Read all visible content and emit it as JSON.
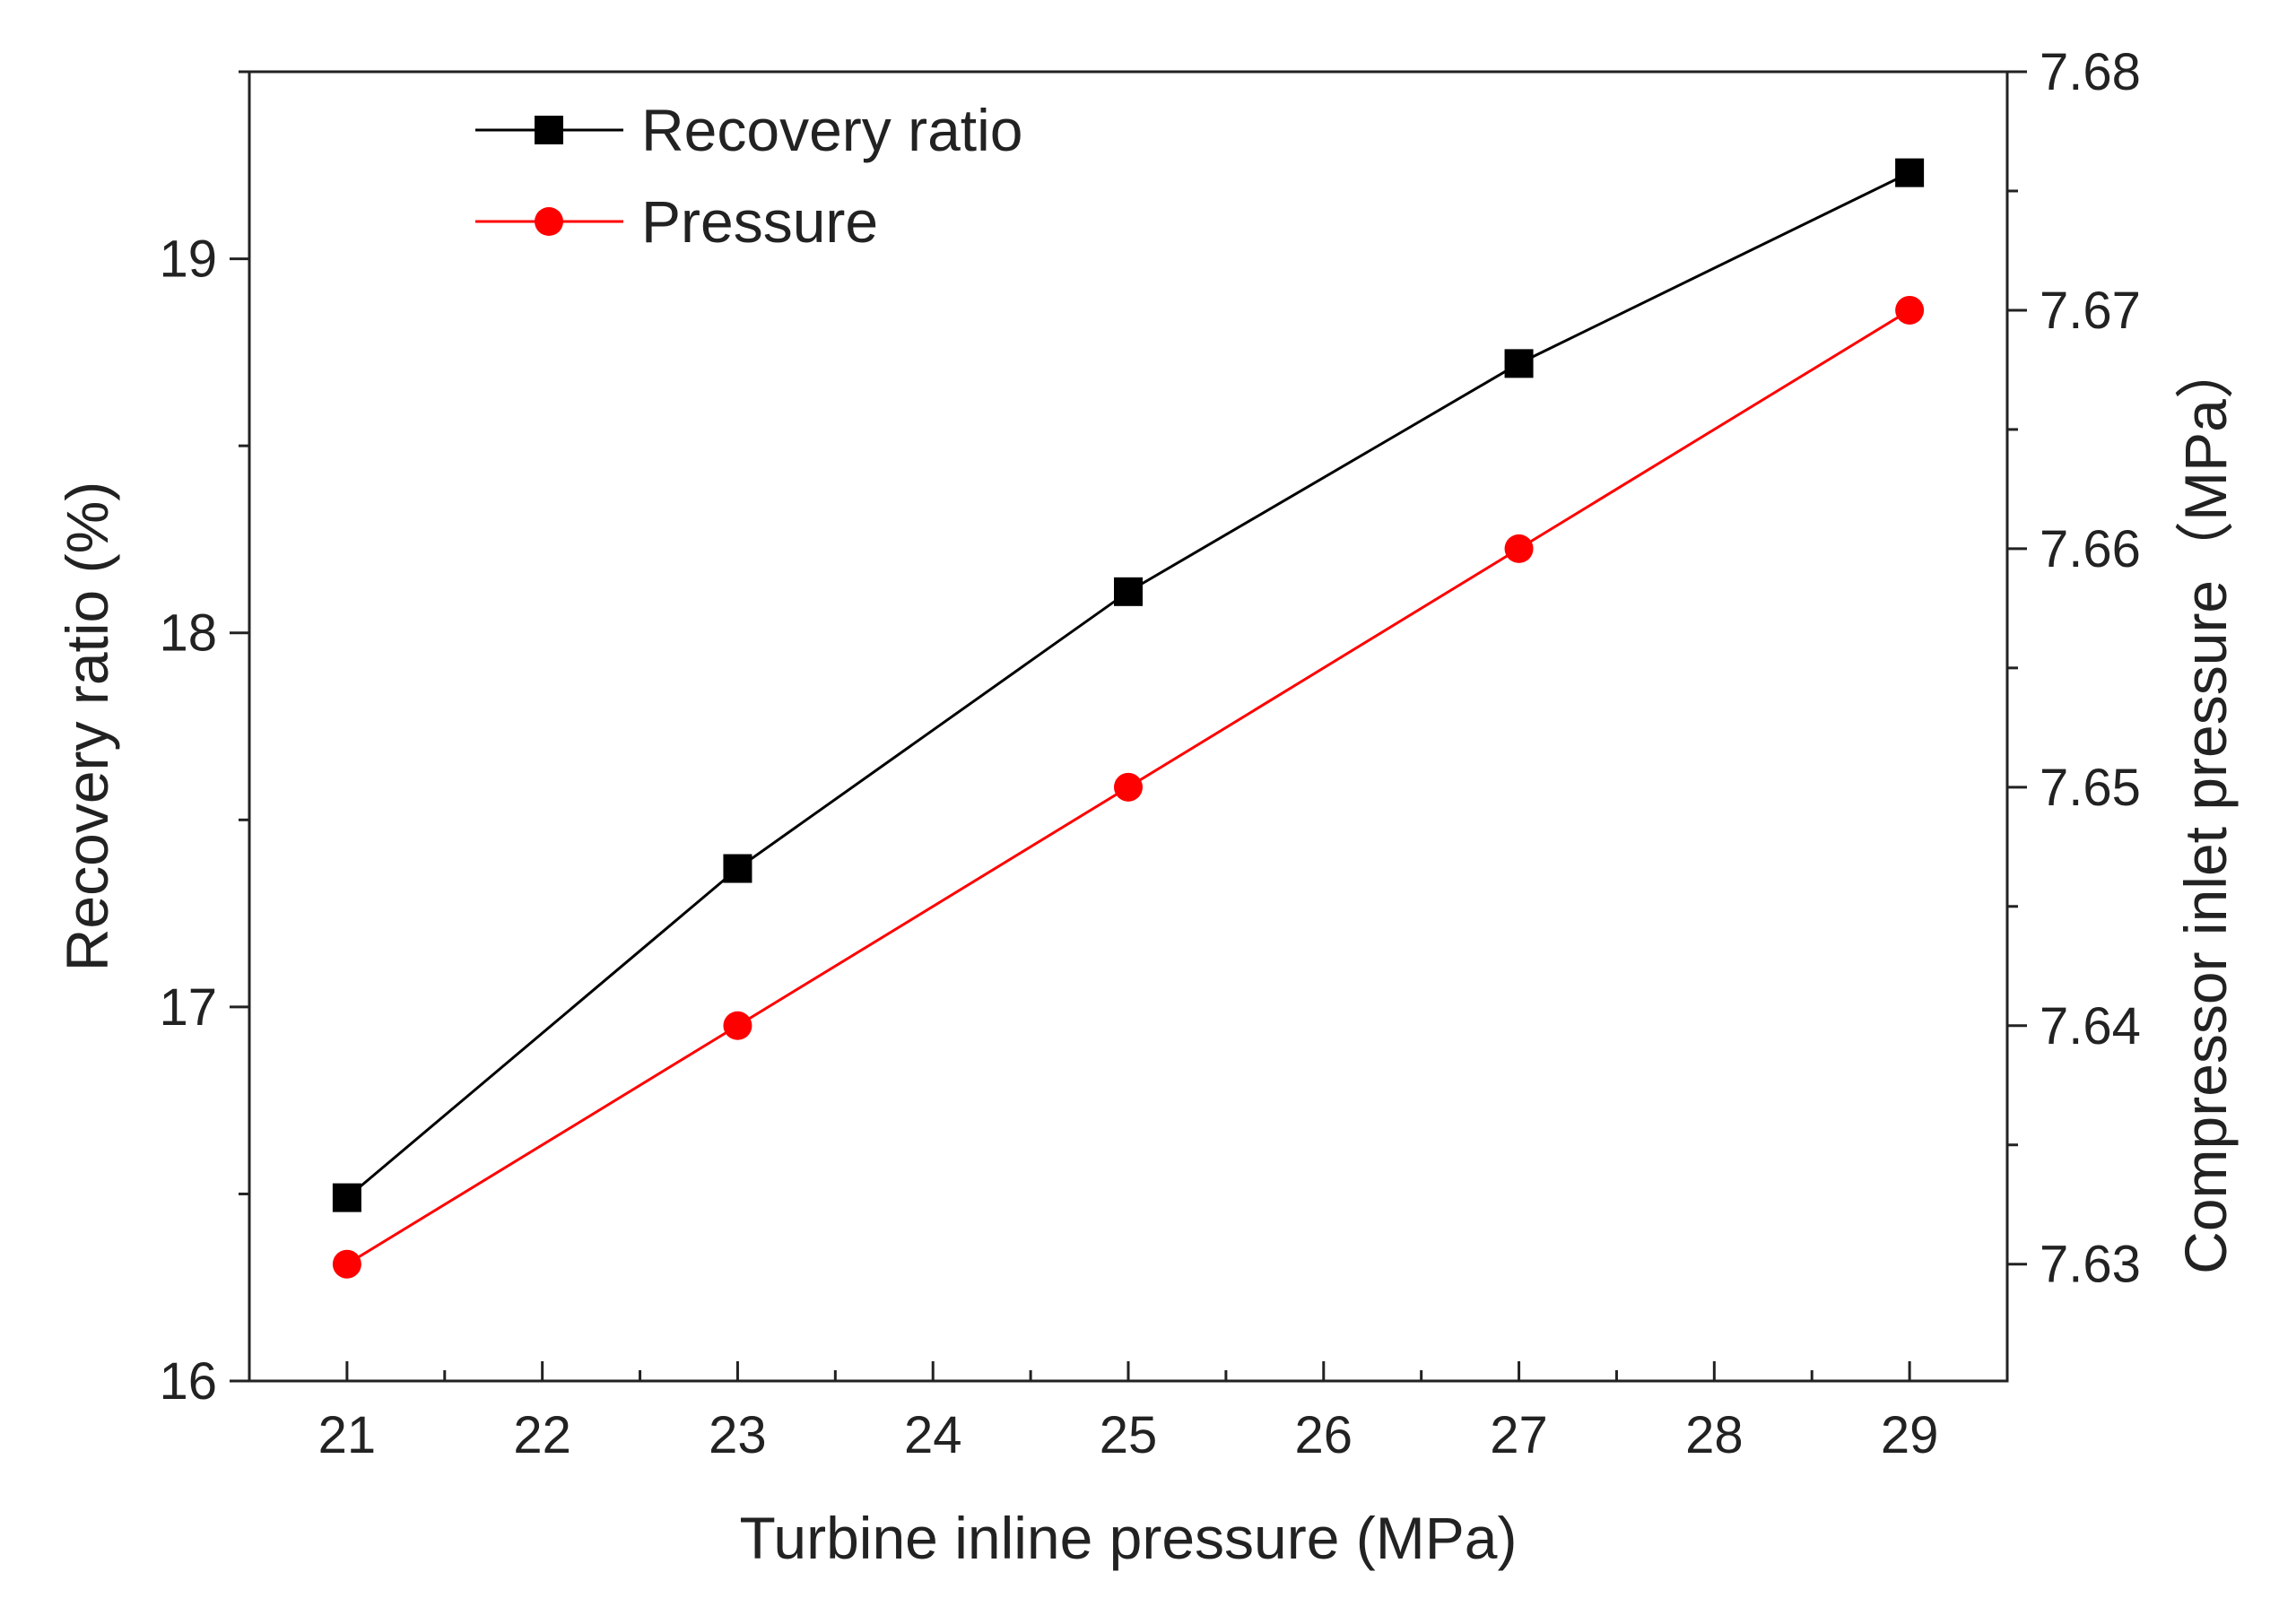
{
  "chart_data": {
    "type": "line",
    "xlabel": "Turbine inline pressure (MPa)",
    "ylabel_left": "Recovery ratio (%)",
    "ylabel_right": "Compressor inlet pressure（MPa）",
    "xlim": [
      20.5,
      29.5
    ],
    "ylim_left": [
      16,
      19.5
    ],
    "ylim_right": [
      7.6251,
      7.68
    ],
    "x_ticks": [
      21,
      22,
      23,
      24,
      25,
      26,
      27,
      28,
      29
    ],
    "x_tick_labels": [
      "21",
      "22",
      "23",
      "24",
      "25",
      "26",
      "27",
      "28",
      "29"
    ],
    "y_left_ticks": [
      16,
      17,
      18,
      19
    ],
    "y_left_tick_labels": [
      "16",
      "17",
      "18",
      "19"
    ],
    "y_right_ticks": [
      7.63,
      7.64,
      7.65,
      7.66,
      7.67,
      7.68
    ],
    "y_right_tick_labels": [
      "7.63",
      "7.64",
      "7.65",
      "7.66",
      "7.67",
      "7.68"
    ],
    "grid": false,
    "legend_position": "top-left",
    "series": [
      {
        "name": "Recovery ratio",
        "axis": "left",
        "color": "#000000",
        "marker": "square",
        "x": [
          21,
          23,
          25,
          27,
          29
        ],
        "values": [
          16.49,
          17.37,
          18.11,
          18.72,
          19.23
        ]
      },
      {
        "name": "Pressure",
        "axis": "right",
        "color": "#ff0000",
        "marker": "circle",
        "x": [
          21,
          23,
          25,
          27,
          29
        ],
        "values": [
          7.63,
          7.64,
          7.65,
          7.66,
          7.67
        ]
      }
    ]
  }
}
